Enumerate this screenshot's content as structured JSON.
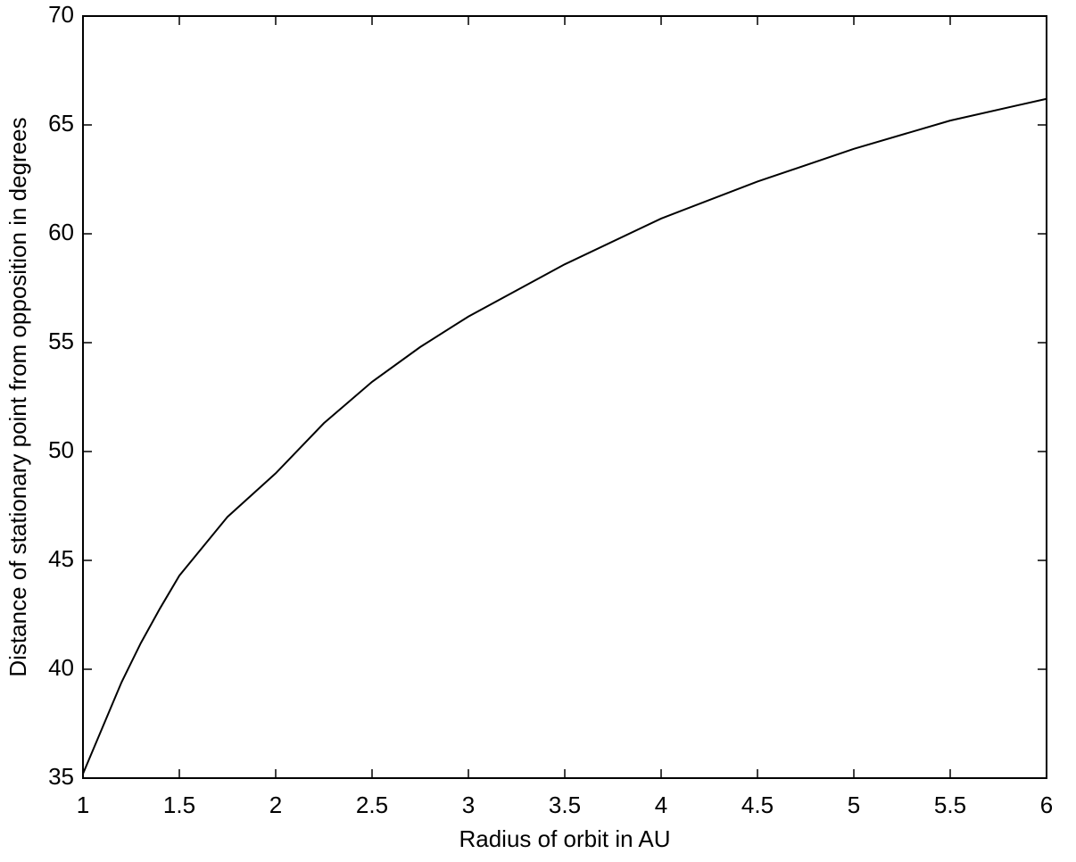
{
  "chart_data": {
    "type": "line",
    "x_label": "Radius of orbit in AU",
    "y_label": "Distance of stationary point from opposition in degrees",
    "x": [
      1,
      1.1,
      1.2,
      1.3,
      1.4,
      1.5,
      1.75,
      2,
      2.25,
      2.5,
      2.75,
      3,
      3.5,
      4,
      4.5,
      5,
      5.5,
      6
    ],
    "series": [
      {
        "color": "#000000",
        "values": [
          35.2,
          37.3,
          39.4,
          41.2,
          42.8,
          44.3,
          47.0,
          49.0,
          51.3,
          53.2,
          54.8,
          56.2,
          58.6,
          60.7,
          62.4,
          63.9,
          65.2,
          66.2
        ]
      }
    ],
    "xlim": [
      1,
      6
    ],
    "xticks": [
      1,
      1.5,
      2,
      2.5,
      3,
      3.5,
      4,
      4.5,
      5,
      5.5,
      6
    ],
    "ylim": [
      35,
      70
    ],
    "yticks": [
      35,
      40,
      45,
      50,
      55,
      60,
      65,
      70
    ],
    "grid": false
  }
}
